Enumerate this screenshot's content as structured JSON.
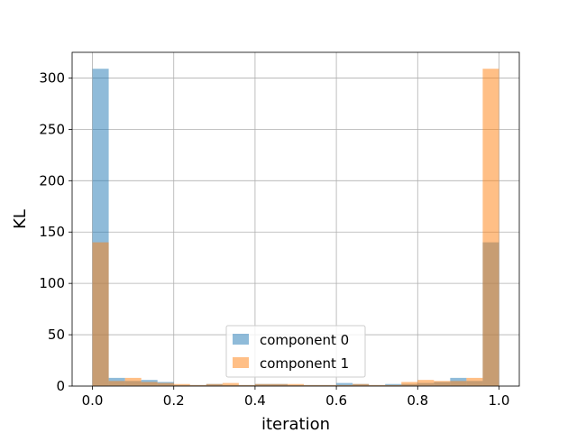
{
  "chart_data": {
    "type": "histogram",
    "xlabel": "iteration",
    "ylabel": "KL",
    "xlim": [
      -0.05,
      1.05
    ],
    "ylim": [
      0,
      325
    ],
    "grid": true,
    "legend_placement": "lower center",
    "bin_edges": [
      0.0,
      0.04,
      0.08,
      0.12,
      0.16,
      0.2,
      0.24,
      0.28,
      0.32,
      0.36,
      0.4,
      0.44,
      0.48,
      0.52,
      0.56,
      0.6,
      0.64,
      0.68,
      0.72,
      0.76,
      0.8,
      0.84,
      0.88,
      0.92,
      0.96,
      1.0
    ],
    "x_ticks": [
      {
        "value": 0.0,
        "label": "0.0"
      },
      {
        "value": 0.2,
        "label": "0.2"
      },
      {
        "value": 0.4,
        "label": "0.4"
      },
      {
        "value": 0.6,
        "label": "0.6"
      },
      {
        "value": 0.8,
        "label": "0.8"
      },
      {
        "value": 1.0,
        "label": "1.0"
      }
    ],
    "y_ticks": [
      {
        "value": 0,
        "label": "0"
      },
      {
        "value": 50,
        "label": "50"
      },
      {
        "value": 100,
        "label": "100"
      },
      {
        "value": 150,
        "label": "150"
      },
      {
        "value": 200,
        "label": "200"
      },
      {
        "value": 250,
        "label": "250"
      },
      {
        "value": 300,
        "label": "300"
      }
    ],
    "series": [
      {
        "name": "component 0",
        "color": "#1f77b4",
        "opacity": 0.5,
        "counts": [
          309,
          8,
          5,
          6,
          4,
          1,
          1,
          2,
          1,
          1,
          2,
          2,
          1,
          1,
          1,
          3,
          2,
          1,
          2,
          2,
          3,
          4,
          8,
          5,
          140
        ]
      },
      {
        "name": "component 1",
        "color": "#ff7f0e",
        "opacity": 0.5,
        "counts": [
          140,
          5,
          8,
          4,
          3,
          2,
          1,
          2,
          3,
          1,
          2,
          2,
          2,
          1,
          1,
          1,
          2,
          1,
          1,
          4,
          6,
          5,
          5,
          8,
          309
        ]
      }
    ]
  }
}
